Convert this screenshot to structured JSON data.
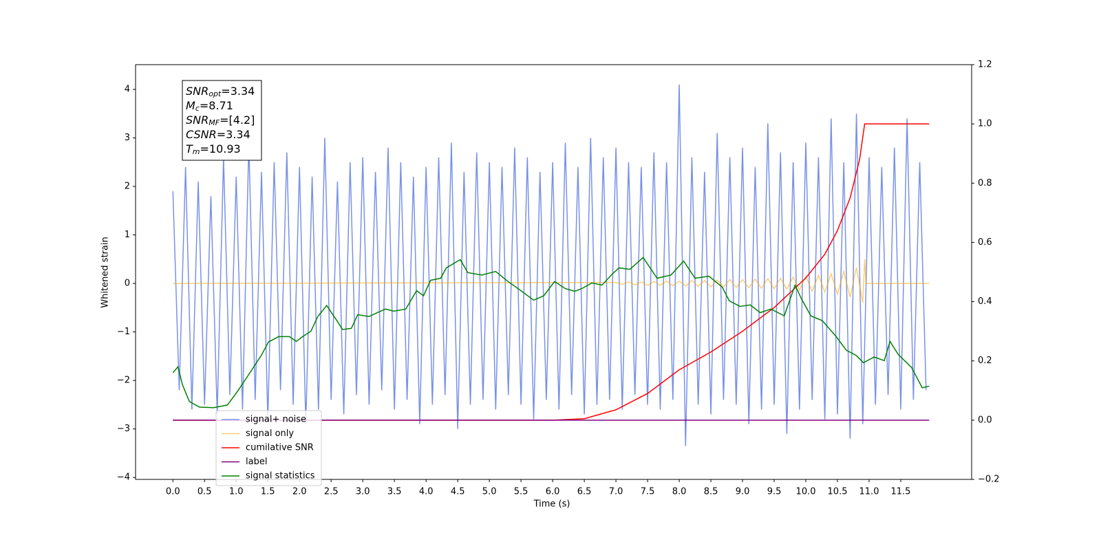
{
  "chart_data": {
    "type": "line",
    "xlabel": "Time (s)",
    "ylabel": "Whitened strain",
    "xlim": [
      -0.59,
      12.62
    ],
    "ylim": [
      -4.04,
      4.51
    ],
    "y2lim": [
      -0.2,
      1.2
    ],
    "xticks": [
      {
        "value": 0,
        "label": "0.0"
      },
      0.5,
      {
        "value": 1,
        "label": "1.0"
      },
      1.5,
      {
        "value": 2,
        "label": "2.0"
      },
      2.5,
      {
        "value": 3,
        "label": "3.0"
      },
      3.5,
      {
        "value": 4,
        "label": "4.0"
      },
      4.5,
      {
        "value": 5,
        "label": "5.0"
      },
      5.5,
      {
        "value": 6,
        "label": "6.0"
      },
      6.5,
      {
        "value": 7,
        "label": "7.0"
      },
      7.5,
      {
        "value": 8,
        "label": "8.0"
      },
      8.5,
      {
        "value": 9,
        "label": "9.0"
      },
      9.5,
      {
        "value": 10,
        "label": "10.0"
      },
      10.5,
      {
        "value": 11,
        "label": "11.0"
      },
      11.5
    ],
    "yticks": [
      {
        "value": -4,
        "label": "−4"
      },
      {
        "value": -3,
        "label": "−3"
      },
      {
        "value": -2,
        "label": "−2"
      },
      {
        "value": -1,
        "label": "−1"
      },
      0,
      1,
      2,
      3,
      4
    ],
    "y2ticks": [
      {
        "value": -0.2,
        "label": "−0.2"
      },
      {
        "value": 0,
        "label": "0.0"
      },
      0.2,
      0.4,
      0.6,
      0.8,
      {
        "value": 1,
        "label": "1.0"
      },
      1.2
    ],
    "legend_loc": "lower left",
    "annotation": [
      {
        "symbol": "SNR",
        "sub": "opt",
        "text": "=3.34"
      },
      {
        "symbol": "M",
        "sub": "c",
        "text": "=8.71"
      },
      {
        "symbol": "SNR",
        "sub": "MF",
        "text": "=[4.2]"
      },
      {
        "symbol": "CSNR",
        "sub": null,
        "text": "=3.34"
      },
      {
        "symbol": "T",
        "sub": "m",
        "text": "=10.93"
      }
    ],
    "series": [
      {
        "name": "signal+ noise",
        "color": "#7891e8",
        "axis": "y",
        "x": [
          0,
          0.1,
          0.2,
          0.3,
          0.4,
          0.5,
          0.6,
          0.7,
          0.8,
          0.9,
          1,
          1.1,
          1.2,
          1.3,
          1.4,
          1.5,
          1.6,
          1.7,
          1.8,
          1.9,
          2,
          2.1,
          2.2,
          2.3,
          2.4,
          2.5,
          2.6,
          2.7,
          2.8,
          2.9,
          3,
          3.1,
          3.2,
          3.3,
          3.4,
          3.5,
          3.6,
          3.7,
          3.8,
          3.9,
          4,
          4.1,
          4.2,
          4.3,
          4.4,
          4.5,
          4.6,
          4.7,
          4.8,
          4.9,
          5,
          5.1,
          5.2,
          5.3,
          5.4,
          5.5,
          5.6,
          5.7,
          5.8,
          5.9,
          6,
          6.1,
          6.2,
          6.3,
          6.4,
          6.5,
          6.6,
          6.7,
          6.8,
          6.9,
          7,
          7.1,
          7.2,
          7.3,
          7.4,
          7.5,
          7.6,
          7.7,
          7.8,
          7.9,
          8,
          8.1,
          8.2,
          8.3,
          8.4,
          8.5,
          8.6,
          8.7,
          8.8,
          8.9,
          9,
          9.1,
          9.2,
          9.3,
          9.4,
          9.5,
          9.6,
          9.7,
          9.8,
          9.9,
          10,
          10.1,
          10.2,
          10.3,
          10.4,
          10.5,
          10.6,
          10.7,
          10.8,
          10.9,
          11,
          11.1,
          11.2,
          11.3,
          11.4,
          11.5,
          11.6,
          11.7,
          11.8,
          11.9
        ],
        "values": [
          1.9,
          -2.2,
          2.4,
          -2.6,
          2.1,
          -2.5,
          1.8,
          -2.7,
          2.6,
          -2.3,
          2.2,
          -2.6,
          2.9,
          -2.4,
          2.3,
          -2.8,
          2.5,
          -2.2,
          2.7,
          -2.5,
          2.4,
          -2.9,
          2.2,
          -2.6,
          3.0,
          -2.4,
          2.1,
          -2.7,
          2.5,
          -2.3,
          2.6,
          -2.5,
          2.3,
          -2.2,
          2.8,
          -2.6,
          2.5,
          -2.4,
          2.2,
          -2.9,
          2.4,
          -2.5,
          2.6,
          -2.3,
          2.9,
          -3.0,
          2.3,
          -2.5,
          2.7,
          -2.4,
          2.5,
          -2.6,
          2.4,
          -2.3,
          2.8,
          -2.5,
          2.6,
          -2.8,
          2.3,
          -2.4,
          2.5,
          -2.6,
          2.9,
          -2.3,
          2.4,
          -2.7,
          3.0,
          -2.5,
          2.6,
          -2.4,
          2.8,
          -2.6,
          2.5,
          -2.3,
          2.4,
          -2.5,
          2.7,
          -2.6,
          2.5,
          -2.4,
          4.1,
          -3.35,
          2.6,
          -2.5,
          2.3,
          -2.7,
          3.1,
          -2.4,
          2.6,
          -2.5,
          2.8,
          -2.9,
          2.4,
          -2.6,
          3.3,
          -2.5,
          2.7,
          -3.1,
          2.5,
          -2.6,
          2.9,
          -2.4,
          2.6,
          -2.8,
          3.4,
          -2.7,
          2.5,
          -3.2,
          3.5,
          -2.9,
          2.6,
          -2.5,
          2.4,
          -2.3,
          2.8,
          -2.6,
          3.4,
          -2.4,
          2.5,
          -2.2
        ]
      },
      {
        "name": "signal only",
        "color": "#ffa500",
        "axis": "y",
        "x": [
          0,
          7,
          7.1,
          7.2,
          7.3,
          7.4,
          7.5,
          7.6,
          7.7,
          7.8,
          7.9,
          8,
          8.1,
          8.2,
          8.3,
          8.4,
          8.5,
          8.6,
          8.7,
          8.8,
          8.9,
          9,
          9.1,
          9.2,
          9.3,
          9.4,
          9.5,
          9.6,
          9.7,
          9.8,
          9.9,
          10,
          10.1,
          10.2,
          10.3,
          10.4,
          10.5,
          10.6,
          10.7,
          10.8,
          10.9,
          10.93,
          10.95,
          11.95
        ],
        "values": [
          0,
          0.02,
          -0.02,
          0.03,
          -0.03,
          0.03,
          -0.04,
          0.04,
          -0.04,
          0.05,
          -0.05,
          0.05,
          -0.05,
          0.06,
          -0.06,
          0.06,
          -0.07,
          0.07,
          -0.07,
          0.08,
          -0.08,
          0.08,
          -0.09,
          0.09,
          -0.1,
          0.1,
          -0.11,
          0.11,
          -0.12,
          0.13,
          -0.14,
          0.15,
          -0.16,
          0.17,
          -0.18,
          0.2,
          -0.22,
          0.25,
          -0.28,
          0.33,
          -0.4,
          0.5,
          0,
          0
        ]
      },
      {
        "name": "cumilative SNR",
        "color": "#ff0000",
        "axis": "y2",
        "x": [
          0,
          6,
          6.5,
          7,
          7.5,
          8,
          8.5,
          9,
          9.5,
          10,
          10.3,
          10.5,
          10.7,
          10.85,
          10.93,
          11.95
        ],
        "values": [
          0,
          0,
          0.005,
          0.035,
          0.09,
          0.17,
          0.23,
          0.3,
          0.38,
          0.48,
          0.56,
          0.64,
          0.75,
          0.88,
          1.0,
          1.0
        ]
      },
      {
        "name": "label",
        "color": "#800080",
        "axis": "y2",
        "x": [
          0,
          11.95
        ],
        "values": [
          0,
          0
        ]
      },
      {
        "name": "signal statistics",
        "color": "#008000",
        "axis": "y2",
        "x": [
          0,
          0.08,
          0.15,
          0.26,
          0.42,
          0.64,
          0.86,
          1.02,
          1.18,
          1.4,
          1.51,
          1.67,
          1.84,
          1.95,
          2.05,
          2.18,
          2.29,
          2.43,
          2.6,
          2.68,
          2.82,
          2.92,
          3.1,
          3.23,
          3.36,
          3.49,
          3.68,
          3.85,
          3.96,
          4.07,
          4.23,
          4.32,
          4.54,
          4.66,
          4.88,
          5.1,
          5.27,
          5.48,
          5.7,
          5.86,
          6.03,
          6.2,
          6.35,
          6.46,
          6.62,
          6.78,
          6.95,
          7.05,
          7.22,
          7.43,
          7.65,
          7.87,
          8.07,
          8.25,
          8.47,
          8.68,
          8.79,
          8.96,
          9.12,
          9.28,
          9.45,
          9.66,
          9.83,
          9.93,
          10.08,
          10.26,
          10.48,
          10.64,
          10.8,
          10.91,
          11.08,
          11.24,
          11.33,
          11.46,
          11.67,
          11.84,
          11.95
        ],
        "values": [
          0.16,
          0.18,
          0.12,
          0.063,
          0.044,
          0.042,
          0.051,
          0.097,
          0.148,
          0.22,
          0.264,
          0.282,
          0.282,
          0.266,
          0.282,
          0.3,
          0.35,
          0.387,
          0.333,
          0.306,
          0.31,
          0.356,
          0.35,
          0.363,
          0.375,
          0.368,
          0.375,
          0.437,
          0.42,
          0.472,
          0.479,
          0.514,
          0.542,
          0.498,
          0.49,
          0.502,
          0.472,
          0.44,
          0.405,
          0.42,
          0.468,
          0.444,
          0.435,
          0.444,
          0.463,
          0.456,
          0.495,
          0.514,
          0.509,
          0.549,
          0.479,
          0.49,
          0.537,
          0.479,
          0.486,
          0.449,
          0.403,
          0.384,
          0.389,
          0.363,
          0.375,
          0.352,
          0.456,
          0.41,
          0.352,
          0.336,
          0.282,
          0.236,
          0.218,
          0.194,
          0.213,
          0.201,
          0.266,
          0.222,
          0.178,
          0.109,
          0.115
        ]
      }
    ]
  }
}
